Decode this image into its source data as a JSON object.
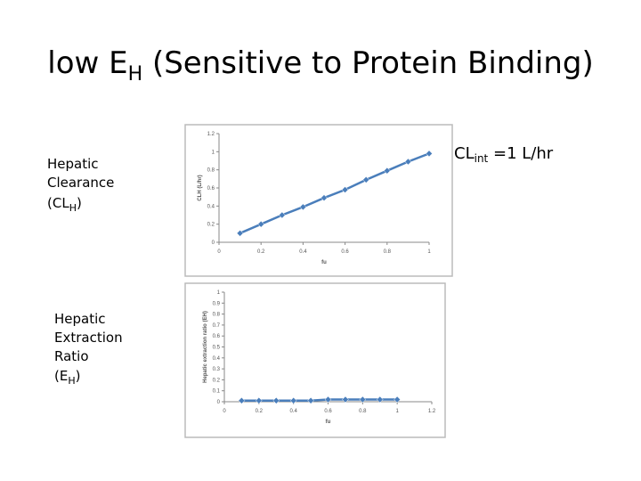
{
  "slide": {
    "title": [
      "low E",
      "H",
      " (Sensitive to Protein Binding)"
    ],
    "clearance_label": [
      "Hepatic",
      "Clearance",
      "(CL",
      "H",
      ")"
    ],
    "extraction_label": [
      "Hepatic",
      "Extraction",
      "Ratio",
      "(E",
      "H",
      ")"
    ],
    "clint_note": [
      "CL",
      "int",
      " =1 L/hr"
    ]
  },
  "chart_data": [
    {
      "type": "line",
      "x_label": "fu",
      "y_label": "CLH (L/hr)",
      "x": [
        0.1,
        0.2,
        0.3,
        0.4,
        0.5,
        0.6,
        0.7,
        0.8,
        0.9,
        1
      ],
      "series": [
        {
          "color": "#4a7ebb",
          "values": [
            0.1,
            0.2,
            0.3,
            0.39,
            0.49,
            0.58,
            0.69,
            0.79,
            0.89,
            0.98
          ]
        }
      ],
      "xlim": [
        0,
        1
      ],
      "xticks": [
        0,
        0.2,
        0.4,
        0.6,
        0.8,
        1
      ],
      "ylim": [
        0,
        1.2
      ],
      "yticks": [
        0,
        0.2,
        0.4,
        0.6,
        0.8,
        1,
        1.2
      ]
    },
    {
      "type": "line",
      "x_label": "fu",
      "y_label": "Hepatic extraction ratio (EH)",
      "x": [
        0.1,
        0.2,
        0.3,
        0.4,
        0.5,
        0.6,
        0.7,
        0.8,
        0.9,
        1
      ],
      "series": [
        {
          "color": "#4a7ebb",
          "values": [
            0.01,
            0.01,
            0.01,
            0.01,
            0.01,
            0.02,
            0.02,
            0.02,
            0.02,
            0.02
          ]
        }
      ],
      "xlim": [
        0,
        1.2
      ],
      "xticks": [
        0,
        0.2,
        0.4,
        0.6,
        0.8,
        1,
        1.2
      ],
      "ylim": [
        0,
        1
      ],
      "yticks": [
        0,
        0.1,
        0.2,
        0.3,
        0.4,
        0.5,
        0.6,
        0.7,
        0.8,
        0.9,
        1
      ]
    }
  ]
}
